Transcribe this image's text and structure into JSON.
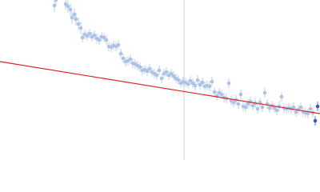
{
  "chart_data": {
    "type": "scatter",
    "xlim": [
      0,
      400
    ],
    "ylim": [
      200,
      0
    ],
    "vline": 230,
    "vline_color": "#c8d4ea",
    "series": [
      {
        "color": "#aec3e3",
        "x": [
          68,
          70,
          82,
          85,
          88,
          90,
          93,
          95,
          98,
          101,
          103,
          106,
          109,
          112,
          115,
          118,
          121,
          124,
          127,
          130,
          133,
          136,
          139,
          142,
          145,
          148,
          151,
          154,
          157,
          160,
          163,
          166,
          169,
          172,
          175,
          178,
          181,
          184,
          187,
          190,
          193,
          196,
          199,
          202,
          205,
          208,
          211,
          214,
          217,
          220,
          223,
          226,
          229,
          232,
          235,
          238,
          241,
          244,
          247,
          250,
          253,
          256,
          259,
          262,
          265,
          268,
          271,
          274,
          277,
          280,
          283,
          286,
          289,
          292,
          295,
          298,
          301,
          304,
          307,
          310,
          313,
          316,
          319,
          322,
          325,
          328,
          331,
          334,
          337,
          340,
          343,
          346,
          349,
          352,
          355,
          358,
          361,
          364,
          367,
          370,
          373,
          376,
          379,
          382,
          385,
          388,
          391
        ],
        "values": [
          7,
          0,
          5,
          8,
          12,
          22,
          18,
          24,
          30,
          35,
          47,
          43,
          45,
          42,
          46,
          44,
          48,
          50,
          46,
          47,
          50,
          58,
          59,
          57,
          58,
          56,
          67,
          73,
          77,
          76,
          74,
          79,
          80,
          82,
          84,
          88,
          87,
          89,
          86,
          90,
          92,
          94,
          88,
          98,
          92,
          90,
          94,
          92,
          95,
          98,
          100,
          104,
          102,
          103,
          105,
          101,
          104,
          107,
          100,
          106,
          103,
          108,
          107,
          108,
          102,
          115,
          120,
          116,
          118,
          122,
          123,
          104,
          126,
          128,
          125,
          130,
          118,
          133,
          134,
          130,
          127,
          132,
          129,
          136,
          128,
          134,
          116,
          130,
          135,
          132,
          135,
          138,
          133,
          121,
          135,
          136,
          135,
          136,
          134,
          140,
          137,
          134,
          140,
          141,
          142,
          136,
          141
        ],
        "errors": [
          8,
          8,
          8,
          8,
          8,
          8,
          8,
          8,
          8,
          8,
          6,
          6,
          6,
          6,
          6,
          6,
          6,
          6,
          6,
          6,
          6,
          6,
          6,
          6,
          6,
          6,
          6,
          6,
          6,
          6,
          6,
          6,
          6,
          6,
          6,
          6,
          6,
          6,
          6,
          6,
          6,
          6,
          6,
          6,
          6,
          6,
          6,
          6,
          6,
          6,
          6,
          6,
          6,
          6,
          6,
          6,
          6,
          6,
          6,
          6,
          6,
          6,
          6,
          6,
          6,
          6,
          6,
          6,
          6,
          6,
          6,
          6,
          6,
          6,
          6,
          6,
          6,
          6,
          6,
          6,
          6,
          6,
          6,
          6,
          6,
          6,
          6,
          6,
          6,
          6,
          6,
          6,
          6,
          6,
          6,
          6,
          6,
          6,
          6,
          6,
          6,
          6,
          6,
          6,
          6,
          6,
          6
        ]
      },
      {
        "color": "#3a5fb0",
        "x": [
          394,
          397
        ],
        "values": [
          151,
          133
        ],
        "errors": [
          6,
          6
        ]
      }
    ],
    "fit": {
      "color": "#d62728",
      "x": [
        0,
        400
      ],
      "values": [
        77,
        142
      ]
    }
  }
}
